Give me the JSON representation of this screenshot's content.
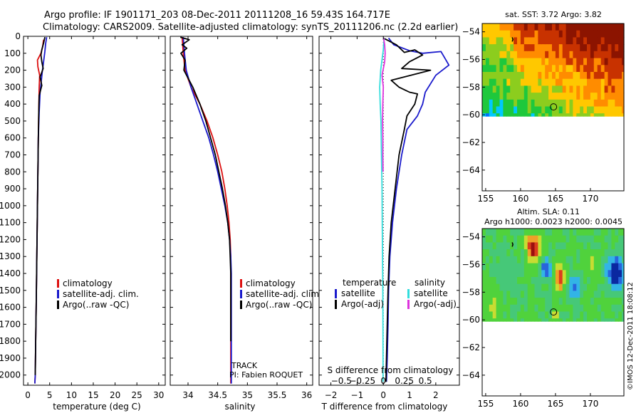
{
  "title": {
    "line1": "Argo profile: IF 1901171_203 08-Dec-2011 20111208_16 59.43S 164.717E",
    "line2": "Climatology: CARS2009. Satellite-adjusted climatology: synTS_20111206.nc (2.2d earlier)"
  },
  "watermark": "©IMOS 12-Dec-2011 18:08:12",
  "colors": {
    "red": "#dd1111",
    "blue": "#1a1acc",
    "black": "#000000",
    "cyan": "#33dddd",
    "magenta": "#dd33dd"
  },
  "chart_data": [
    {
      "type": "line",
      "name": "temperature",
      "xlabel": "temperature (deg C)",
      "ylabel": "",
      "xlim": [
        -1,
        31.5
      ],
      "ylim": [
        2060,
        0
      ],
      "xticks": [
        0,
        5,
        10,
        15,
        20,
        25,
        30
      ],
      "xtick_labels": [
        "0",
        "5",
        "10",
        "15",
        "20",
        "25",
        "30"
      ],
      "yticks": [
        0,
        100,
        200,
        300,
        400,
        500,
        600,
        700,
        800,
        900,
        1000,
        1100,
        1200,
        1300,
        1400,
        1500,
        1600,
        1700,
        1800,
        1900,
        2000
      ],
      "ytick_labels": [
        "0",
        "100",
        "200",
        "300",
        "400",
        "500",
        "600",
        "700",
        "800",
        "900",
        "1000",
        "1100",
        "1200",
        "1300",
        "1400",
        "1500",
        "1600",
        "1700",
        "1800",
        "1900",
        "2000"
      ],
      "legend": {
        "position": "center",
        "entries": [
          "climatology",
          "satellite-adj. clim.",
          "Argo(..raw -QC)"
        ]
      },
      "series": [
        {
          "name": "climatology",
          "color": "#dd1111",
          "points": [
            [
              3.6,
              20
            ],
            [
              3.4,
              60
            ],
            [
              3.0,
              100
            ],
            [
              2.2,
              140
            ],
            [
              2.3,
              180
            ],
            [
              2.7,
              230
            ],
            [
              2.6,
              300
            ],
            [
              2.5,
              450
            ],
            [
              2.4,
              600
            ],
            [
              2.3,
              800
            ],
            [
              2.2,
              1000
            ],
            [
              2.1,
              1200
            ],
            [
              2.0,
              1400
            ],
            [
              1.9,
              1600
            ],
            [
              1.8,
              1800
            ],
            [
              1.7,
              2000
            ],
            [
              1.6,
              2050
            ]
          ]
        },
        {
          "name": "satellite-adj. clim.",
          "color": "#1a1acc",
          "points": [
            [
              4.3,
              5
            ],
            [
              4.1,
              40
            ],
            [
              3.9,
              90
            ],
            [
              3.6,
              150
            ],
            [
              3.3,
              210
            ],
            [
              3.1,
              260
            ],
            [
              2.8,
              330
            ],
            [
              2.6,
              450
            ],
            [
              2.4,
              600
            ],
            [
              2.3,
              800
            ],
            [
              2.2,
              1000
            ],
            [
              2.1,
              1200
            ],
            [
              2.0,
              1400
            ],
            [
              1.9,
              1600
            ],
            [
              1.8,
              1800
            ],
            [
              1.7,
              2000
            ],
            [
              1.6,
              2050
            ]
          ]
        },
        {
          "name": "Argo(..raw -QC)",
          "color": "#000000",
          "points": [
            [
              3.9,
              5
            ],
            [
              3.6,
              40
            ],
            [
              3.2,
              80
            ],
            [
              3.0,
              110
            ],
            [
              3.2,
              150
            ],
            [
              3.5,
              190
            ],
            [
              2.8,
              240
            ],
            [
              3.2,
              290
            ],
            [
              2.6,
              350
            ],
            [
              2.5,
              450
            ],
            [
              2.4,
              600
            ],
            [
              2.3,
              800
            ],
            [
              2.2,
              1000
            ],
            [
              2.1,
              1200
            ],
            [
              2.0,
              1400
            ],
            [
              1.9,
              1600
            ],
            [
              1.8,
              1800
            ],
            [
              1.7,
              2000
            ]
          ]
        }
      ]
    },
    {
      "type": "line",
      "name": "salinity",
      "xlabel": "salinity",
      "xlim": [
        33.7,
        36.1
      ],
      "ylim": [
        2060,
        0
      ],
      "xticks": [
        34,
        34.5,
        35,
        35.5,
        36
      ],
      "xtick_labels": [
        "34",
        "34.5",
        "35",
        "35.5",
        "36"
      ],
      "legend": {
        "position": "center-right",
        "entries": [
          "climatology",
          "satellite-adj. clim.",
          "Argo(..raw -QC)"
        ]
      },
      "annotation": {
        "track": "TRACK",
        "pi": "PI: Fabien ROQUET"
      },
      "series": [
        {
          "name": "climatology",
          "color": "#dd1111",
          "points": [
            [
              33.9,
              5
            ],
            [
              33.92,
              100
            ],
            [
              33.95,
              200
            ],
            [
              34.05,
              300
            ],
            [
              34.2,
              400
            ],
            [
              34.32,
              500
            ],
            [
              34.42,
              600
            ],
            [
              34.5,
              700
            ],
            [
              34.57,
              800
            ],
            [
              34.62,
              900
            ],
            [
              34.66,
              1000
            ],
            [
              34.69,
              1100
            ],
            [
              34.71,
              1200
            ],
            [
              34.72,
              1300
            ],
            [
              34.72,
              1400
            ],
            [
              34.72,
              1600
            ],
            [
              34.72,
              1800
            ],
            [
              34.72,
              2050
            ]
          ]
        },
        {
          "name": "satellite-adj. clim.",
          "color": "#1a1acc",
          "points": [
            [
              33.92,
              5
            ],
            [
              33.94,
              100
            ],
            [
              33.97,
              200
            ],
            [
              34.05,
              300
            ],
            [
              34.15,
              400
            ],
            [
              34.25,
              500
            ],
            [
              34.35,
              600
            ],
            [
              34.43,
              700
            ],
            [
              34.5,
              800
            ],
            [
              34.56,
              900
            ],
            [
              34.62,
              1000
            ],
            [
              34.67,
              1100
            ],
            [
              34.7,
              1200
            ],
            [
              34.72,
              1300
            ],
            [
              34.73,
              1400
            ],
            [
              34.73,
              1600
            ],
            [
              34.73,
              1800
            ],
            [
              34.73,
              2050
            ]
          ]
        },
        {
          "name": "Argo(..raw -QC)",
          "color": "#000000",
          "points": [
            [
              33.87,
              5
            ],
            [
              34.02,
              20
            ],
            [
              33.9,
              50
            ],
            [
              33.98,
              70
            ],
            [
              33.88,
              100
            ],
            [
              33.95,
              140
            ],
            [
              33.93,
              200
            ],
            [
              34.08,
              300
            ],
            [
              34.2,
              400
            ],
            [
              34.3,
              500
            ],
            [
              34.38,
              600
            ],
            [
              34.46,
              700
            ],
            [
              34.52,
              800
            ],
            [
              34.58,
              900
            ],
            [
              34.63,
              1000
            ],
            [
              34.67,
              1100
            ],
            [
              34.7,
              1200
            ],
            [
              34.71,
              1300
            ],
            [
              34.72,
              1400
            ],
            [
              34.72,
              1600
            ],
            [
              34.72,
              1800
            ]
          ]
        }
      ]
    },
    {
      "type": "line",
      "name": "difference from climatology",
      "xlabel": "T difference from climatology",
      "xlabel_top": "S difference from climatology",
      "xlim": [
        -2.45,
        2.9
      ],
      "ylim": [
        2060,
        0
      ],
      "xticks": [
        -2,
        -1,
        0,
        1,
        2
      ],
      "xtick_labels": [
        "−2",
        "−1",
        "0",
        "1",
        "2"
      ],
      "sticks": [
        -0.5,
        -0.25,
        0,
        0.25,
        0.5
      ],
      "stick_labels": [
        "−0.5",
        "−0.25",
        "0",
        "0.25",
        "0.5"
      ],
      "legend": {
        "position": "center",
        "entries": [
          "temperature",
          "satellite",
          "Argo(-adj)",
          "salinity",
          "satellite",
          "Argo(-adj)"
        ]
      },
      "series": [
        {
          "name": "T satellite",
          "color": "#1a1acc",
          "points": [
            [
              0.2,
              10
            ],
            [
              0.4,
              50
            ],
            [
              1.0,
              85
            ],
            [
              1.5,
              100
            ],
            [
              2.2,
              90
            ],
            [
              2.5,
              170
            ],
            [
              2.0,
              230
            ],
            [
              1.6,
              330
            ],
            [
              1.5,
              400
            ],
            [
              1.3,
              470
            ],
            [
              0.9,
              550
            ],
            [
              0.7,
              700
            ],
            [
              0.5,
              900
            ],
            [
              0.35,
              1100
            ],
            [
              0.25,
              1300
            ],
            [
              0.2,
              1500
            ],
            [
              0.18,
              1700
            ],
            [
              0.15,
              1900
            ],
            [
              0.12,
              2040
            ]
          ]
        },
        {
          "name": "T Argo(-adj)",
          "color": "#000000",
          "points": [
            [
              0,
              10
            ],
            [
              0.5,
              50
            ],
            [
              0.8,
              95
            ],
            [
              1.2,
              80
            ],
            [
              1.5,
              110
            ],
            [
              1.0,
              150
            ],
            [
              0.7,
              190
            ],
            [
              1.8,
              200
            ],
            [
              0.3,
              260
            ],
            [
              0.6,
              300
            ],
            [
              1.0,
              330
            ],
            [
              1.3,
              340
            ],
            [
              1.2,
              400
            ],
            [
              0.9,
              470
            ],
            [
              0.8,
              550
            ],
            [
              0.6,
              700
            ],
            [
              0.45,
              900
            ],
            [
              0.3,
              1100
            ],
            [
              0.22,
              1300
            ],
            [
              0.18,
              1500
            ],
            [
              0.15,
              1700
            ],
            [
              0.12,
              1900
            ],
            [
              0.1,
              2040
            ]
          ]
        },
        {
          "name": "S satellite",
          "color": "#33dddd",
          "points": [
            [
              0.03,
              10
            ],
            [
              0.0,
              80
            ],
            [
              -0.1,
              200
            ],
            [
              -0.14,
              300
            ],
            [
              -0.12,
              400
            ],
            [
              -0.09,
              500
            ],
            [
              -0.07,
              700
            ],
            [
              -0.05,
              900
            ],
            [
              -0.04,
              1100
            ],
            [
              -0.03,
              1300
            ],
            [
              -0.02,
              1500
            ],
            [
              -0.015,
              1700
            ],
            [
              -0.01,
              1900
            ],
            [
              -0.01,
              2040
            ]
          ]
        },
        {
          "name": "S Argo(-adj)",
          "color": "#dd33dd",
          "points": [
            [
              0.01,
              10
            ],
            [
              0.05,
              50
            ],
            [
              0.07,
              100
            ],
            [
              0.05,
              150
            ],
            [
              -0.05,
              230
            ],
            [
              0.0,
              300
            ],
            [
              -0.02,
              400
            ],
            [
              -0.03,
              500
            ],
            [
              -0.02,
              600
            ],
            [
              -0.02,
              700
            ],
            [
              -0.01,
              800
            ]
          ]
        }
      ]
    },
    {
      "type": "heatmap",
      "name": "sat SST map",
      "title": "sat. SST: 3.72 Argo: 3.82",
      "xlim": [
        154.5,
        174.8
      ],
      "ylim": [
        -65.5,
        -53.4
      ],
      "data_ylim": [
        -60.1,
        -53.4
      ],
      "xticks": [
        155,
        160,
        165,
        170
      ],
      "xtick_labels": [
        "155",
        "160",
        "165",
        "170"
      ],
      "yticks": [
        -54,
        -56,
        -58,
        -60,
        -62,
        -64
      ],
      "ytick_labels": [
        "−54",
        "−56",
        "−58",
        "−60",
        "−62",
        "−64"
      ],
      "argo_position": [
        164.72,
        -59.43
      ],
      "color_scale": [
        "#0070ff",
        "#00c8ff",
        "#1ec83c",
        "#8ccd1e",
        "#ffc800",
        "#ff8c00",
        "#c83200",
        "#8c1400"
      ]
    },
    {
      "type": "heatmap",
      "name": "altimetry SLA map",
      "title": "Altim. SLA: 0.11",
      "subtitle": "Argo h1000: 0.0023 h2000: 0.0045",
      "xlim": [
        154.5,
        174.8
      ],
      "ylim": [
        -65.5,
        -53.4
      ],
      "data_ylim": [
        -60.1,
        -53.4
      ],
      "xticks": [
        155,
        160,
        165,
        170
      ],
      "xtick_labels": [
        "155",
        "160",
        "165",
        "170"
      ],
      "yticks": [
        -54,
        -56,
        -58,
        -60,
        -62,
        -64
      ],
      "ytick_labels": [
        "−54",
        "−56",
        "−58",
        "−60",
        "−62",
        "−64"
      ],
      "argo_position": [
        164.72,
        -59.43
      ],
      "color_scale": [
        "#0a28a0",
        "#2864dc",
        "#32b4e6",
        "#46c878",
        "#50d23c",
        "#c8dc32",
        "#f0a028",
        "#dc3c1e",
        "#9b0f0f"
      ]
    }
  ]
}
